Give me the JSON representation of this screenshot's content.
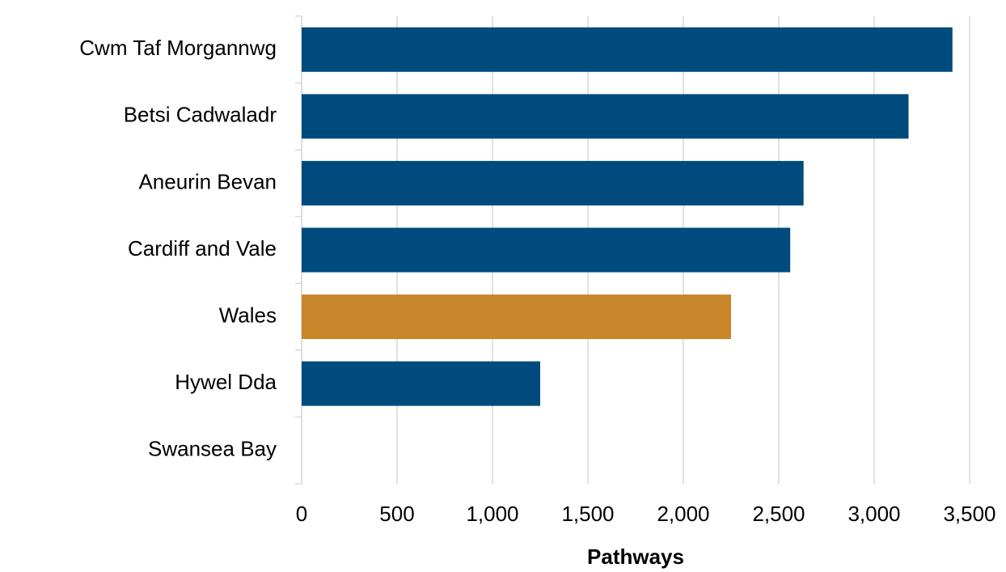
{
  "chart_data": {
    "type": "bar",
    "orientation": "horizontal",
    "categories": [
      "Cwm Taf Morgannwg",
      "Betsi Cadwaladr",
      "Aneurin Bevan",
      "Cardiff and Vale",
      "Wales",
      "Hywel Dda",
      "Swansea Bay"
    ],
    "values": [
      3410,
      3180,
      2630,
      2560,
      2250,
      1250,
      null
    ],
    "colors": [
      "#004b7d",
      "#004b7d",
      "#004b7d",
      "#004b7d",
      "#c8862a",
      "#004b7d",
      "#004b7d"
    ],
    "xlabel": "Pathways",
    "xlim": [
      0,
      3500
    ],
    "xticks": [
      0,
      500,
      {
        "value": 1000,
        "label": "1,000"
      },
      {
        "value": 1500,
        "label": "1,500"
      },
      {
        "value": 2000,
        "label": "2,000"
      },
      {
        "value": 2500,
        "label": "2,500"
      },
      {
        "value": 3000,
        "label": "3,000"
      },
      {
        "value": 3500,
        "label": "3,500"
      }
    ],
    "grid": true
  }
}
